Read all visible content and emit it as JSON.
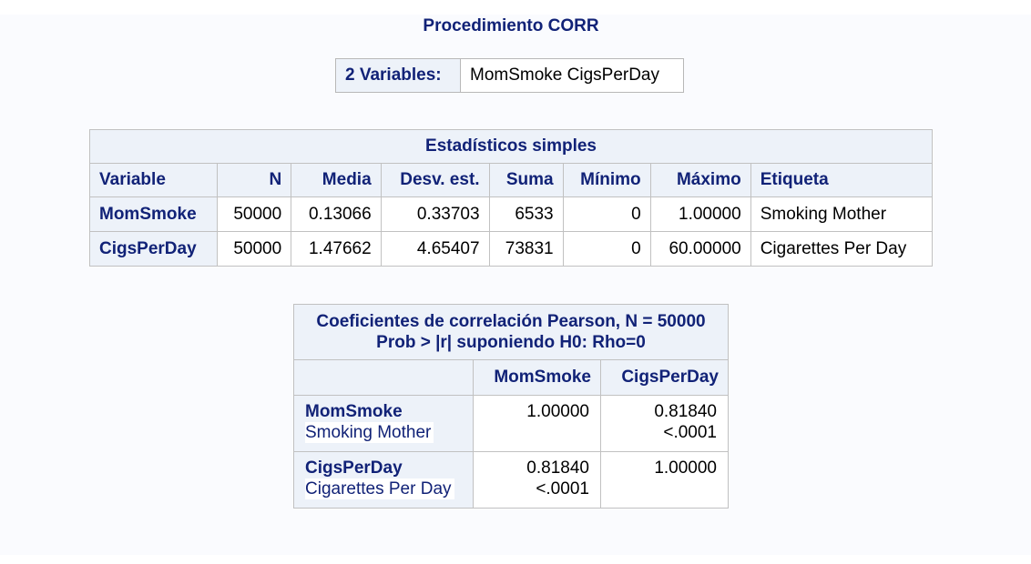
{
  "procedure_title": "Procedimiento CORR",
  "variables_box": {
    "label": "2 Variables:",
    "value": "MomSmoke CigsPerDay"
  },
  "simple_stats": {
    "caption": "Estadísticos simples",
    "headers": [
      "Variable",
      "N",
      "Media",
      "Desv. est.",
      "Suma",
      "Mínimo",
      "Máximo",
      "Etiqueta"
    ],
    "rows": [
      {
        "variable": "MomSmoke",
        "n": "50000",
        "media": "0.13066",
        "desv": "0.33703",
        "suma": "6533",
        "minimo": "0",
        "maximo": "1.00000",
        "etiqueta": "Smoking Mother"
      },
      {
        "variable": "CigsPerDay",
        "n": "50000",
        "media": "1.47662",
        "desv": "4.65407",
        "suma": "73831",
        "minimo": "0",
        "maximo": "60.00000",
        "etiqueta": "Cigarettes Per Day"
      }
    ]
  },
  "correlation": {
    "caption_line1": "Coeficientes de correlación Pearson, N = 50000",
    "caption_line2": "Prob > |r| suponiendo H0: Rho=0",
    "columns": [
      "MomSmoke",
      "CigsPerDay"
    ],
    "rows": [
      {
        "name": "MomSmoke",
        "label": "Smoking Mother",
        "cells": [
          {
            "r": "1.00000",
            "p": ""
          },
          {
            "r": "0.81840",
            "p": "<.0001"
          }
        ]
      },
      {
        "name": "CigsPerDay",
        "label": "Cigarettes Per Day",
        "cells": [
          {
            "r": "0.81840",
            "p": "<.0001"
          },
          {
            "r": "1.00000",
            "p": ""
          }
        ]
      }
    ]
  },
  "colors": {
    "header_text": "#112277",
    "header_bg": "#edf2f9",
    "border": "#c1c1c1",
    "page_bg": "#fafbfe"
  }
}
